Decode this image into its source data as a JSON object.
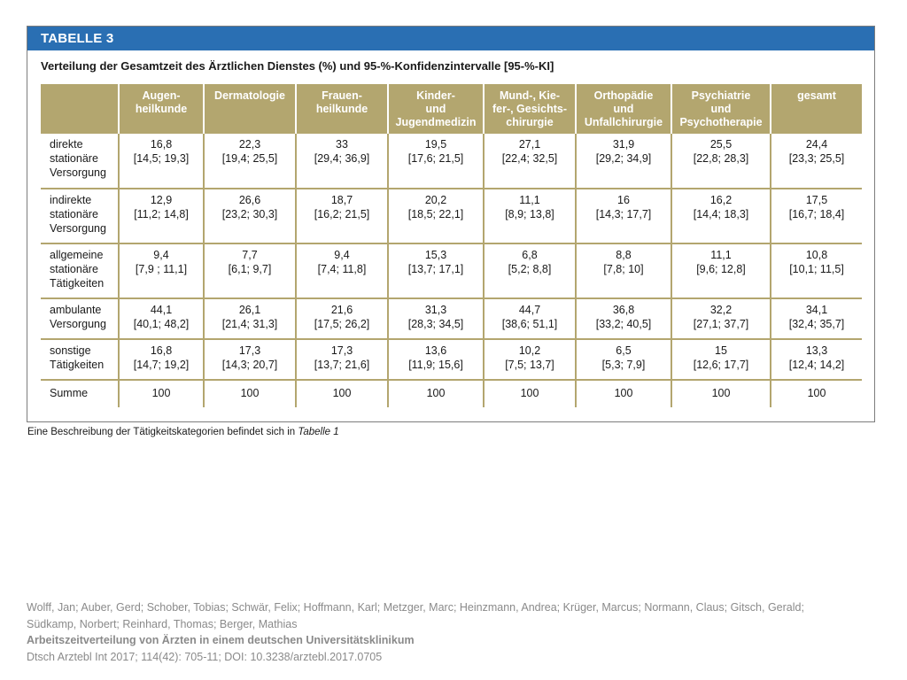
{
  "table": {
    "banner": "TABELLE 3",
    "title": "Verteilung der Gesamtzeit des Ärztlichen Dienstes (%) und 95-%-Konfidenzintervalle [95-%-KI]",
    "columns": [
      [
        "Augen-",
        "heilkunde"
      ],
      [
        "Dermatologie"
      ],
      [
        "Frauen-",
        "heilkunde"
      ],
      [
        "Kinder-",
        "und",
        "Jugendmedizin"
      ],
      [
        "Mund-, Kie-",
        "fer-, Gesichts-",
        "chirurgie"
      ],
      [
        "Orthopädie",
        "und",
        "Unfallchirurgie"
      ],
      [
        "Psychiatrie",
        "und",
        "Psychotherapie"
      ],
      [
        "gesamt"
      ]
    ],
    "rows": [
      {
        "label": [
          "direkte",
          "stationäre",
          "Versorgung"
        ],
        "cells": [
          [
            "16,8",
            "[14,5; 19,3]"
          ],
          [
            "22,3",
            "[19,4; 25,5]"
          ],
          [
            "33",
            "[29,4; 36,9]"
          ],
          [
            "19,5",
            "[17,6; 21,5]"
          ],
          [
            "27,1",
            "[22,4; 32,5]"
          ],
          [
            "31,9",
            "[29,2; 34,9]"
          ],
          [
            "25,5",
            "[22,8; 28,3]"
          ],
          [
            "24,4",
            "[23,3; 25,5]"
          ]
        ]
      },
      {
        "label": [
          "indirekte",
          "stationäre",
          "Versorgung"
        ],
        "cells": [
          [
            "12,9",
            "[11,2; 14,8]"
          ],
          [
            "26,6",
            "[23,2; 30,3]"
          ],
          [
            "18,7",
            "[16,2; 21,5]"
          ],
          [
            "20,2",
            "[18,5; 22,1]"
          ],
          [
            "11,1",
            "[8,9; 13,8]"
          ],
          [
            "16",
            "[14,3; 17,7]"
          ],
          [
            "16,2",
            "[14,4; 18,3]"
          ],
          [
            "17,5",
            "[16,7; 18,4]"
          ]
        ]
      },
      {
        "label": [
          "allgemeine",
          "stationäre",
          "Tätigkeiten"
        ],
        "cells": [
          [
            "9,4",
            "[7,9 ; 11,1]"
          ],
          [
            "7,7",
            "[6,1; 9,7]"
          ],
          [
            "9,4",
            "[7,4; 11,8]"
          ],
          [
            "15,3",
            "[13,7; 17,1]"
          ],
          [
            "6,8",
            "[5,2; 8,8]"
          ],
          [
            "8,8",
            "[7,8; 10]"
          ],
          [
            "11,1",
            "[9,6; 12,8]"
          ],
          [
            "10,8",
            "[10,1; 11,5]"
          ]
        ]
      },
      {
        "label": [
          "ambulante",
          "Versorgung"
        ],
        "cells": [
          [
            "44,1",
            "[40,1; 48,2]"
          ],
          [
            "26,1",
            "[21,4; 31,3]"
          ],
          [
            "21,6",
            "[17,5; 26,2]"
          ],
          [
            "31,3",
            "[28,3; 34,5]"
          ],
          [
            "44,7",
            "[38,6; 51,1]"
          ],
          [
            "36,8",
            "[33,2; 40,5]"
          ],
          [
            "32,2",
            "[27,1; 37,7]"
          ],
          [
            "34,1",
            "[32,4; 35,7]"
          ]
        ]
      },
      {
        "label": [
          "sonstige",
          "Tätigkeiten"
        ],
        "cells": [
          [
            "16,8",
            "[14,7; 19,2]"
          ],
          [
            "17,3",
            "[14,3; 20,7]"
          ],
          [
            "17,3",
            "[13,7; 21,6]"
          ],
          [
            "13,6",
            "[11,9; 15,6]"
          ],
          [
            "10,2",
            "[7,5; 13,7]"
          ],
          [
            "6,5",
            "[5,3; 7,9]"
          ],
          [
            "15",
            "[12,6; 17,7]"
          ],
          [
            "13,3",
            "[12,4; 14,2]"
          ]
        ]
      },
      {
        "label": [
          "Summe"
        ],
        "cells": [
          [
            "100"
          ],
          [
            "100"
          ],
          [
            "100"
          ],
          [
            "100"
          ],
          [
            "100"
          ],
          [
            "100"
          ],
          [
            "100"
          ],
          [
            "100"
          ]
        ]
      }
    ],
    "caption": {
      "text": "Eine Beschreibung der Tätigkeitskategorien befindet sich in ",
      "ref": "Tabelle 1"
    }
  },
  "citation": {
    "authors_line1": "Wolff, Jan; Auber, Gerd; Schober, Tobias; Schwär, Felix; Hoffmann, Karl; Metzger, Marc; Heinzmann, Andrea; Krüger, Marcus; Normann, Claus; Gitsch, Gerald;",
    "authors_line2": "Südkamp, Norbert; Reinhard, Thomas; Berger, Mathias",
    "title": "Arbeitszeitverteilung von Ärzten in einem deutschen Universitätsklinikum",
    "source": "Dtsch Arztebl Int 2017; 114(42): 705-11; DOI: 10.3238/arztebl.2017.0705"
  },
  "colors": {
    "banner": "#2a6fb3",
    "header_fill": "#b3a66f",
    "grid": "#b3a66f",
    "footer_text": "#8a8a8a"
  }
}
